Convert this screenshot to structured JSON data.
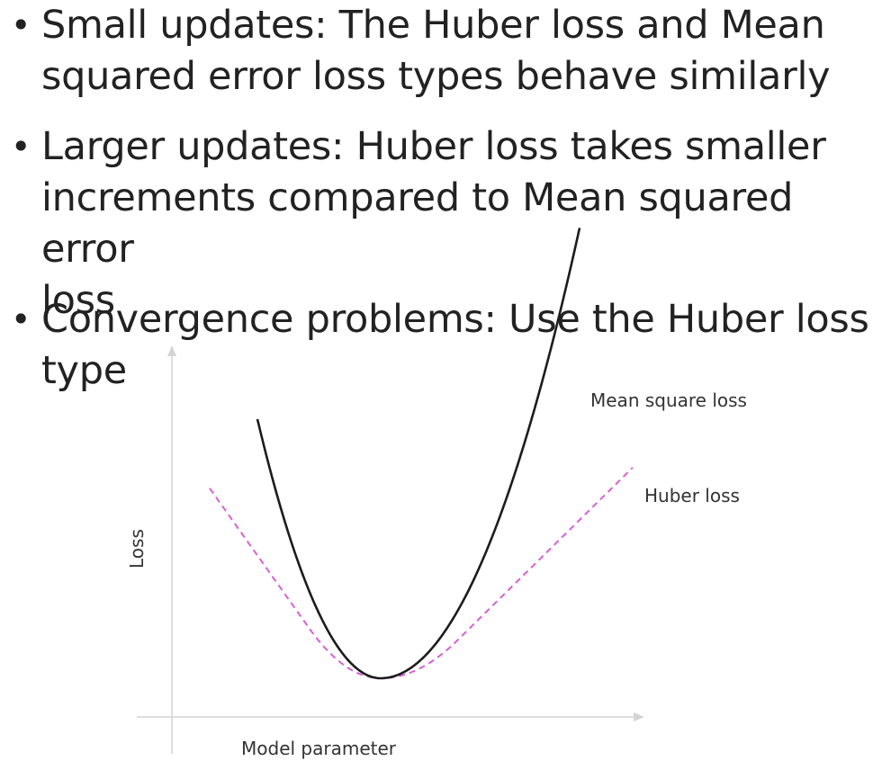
{
  "bullets": [
    "Small updates: The Huber loss and Mean\nsquared error loss types behave similarly",
    "Larger updates: Huber loss takes smaller\nincrements compared to Mean squared error\nloss",
    "Convergence problems: Use the Huber loss\ntype"
  ],
  "bullet_marker": "•",
  "diagram": {
    "y_axis_label": "Loss",
    "x_axis_label": "Model parameter",
    "curves": [
      {
        "name": "Mean square loss",
        "color": "#1c1c1c",
        "style": "solid"
      },
      {
        "name": "Huber loss",
        "color": "#d65fd6",
        "style": "dashed"
      }
    ]
  }
}
